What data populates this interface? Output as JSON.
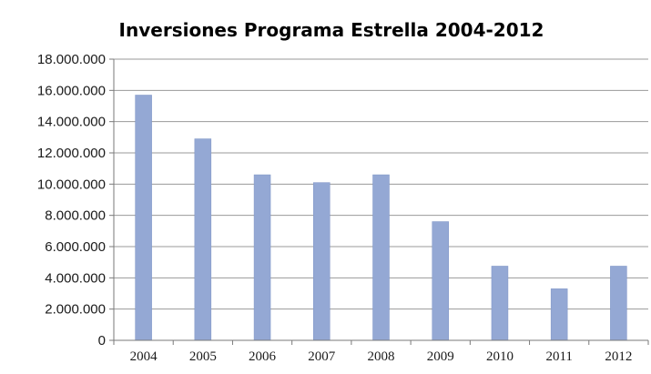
{
  "chart_data": {
    "type": "bar",
    "title": "Inversiones Programa Estrella 2004-2012",
    "categories": [
      "2004",
      "2005",
      "2006",
      "2007",
      "2008",
      "2009",
      "2010",
      "2011",
      "2012"
    ],
    "values": [
      15700000,
      12900000,
      10600000,
      10100000,
      10600000,
      7600000,
      4750000,
      3300000,
      4750000
    ],
    "ylim": [
      0,
      18000000
    ],
    "yticks": [
      0,
      2000000,
      4000000,
      6000000,
      8000000,
      10000000,
      12000000,
      14000000,
      16000000,
      18000000
    ],
    "ytick_labels": [
      "0",
      "2.000.000",
      "4.000.000",
      "6.000.000",
      "8.000.000",
      "10.000.000",
      "12.000.000",
      "14.000.000",
      "16.000.000",
      "18.000.000"
    ],
    "xlabel": "",
    "ylabel": "",
    "grid": true,
    "legend": "none",
    "colors": {
      "bar": "#94a8d4",
      "bar_edge": "#7f95c6",
      "grid": "#9a9a9a",
      "axis": "#7a7a7a"
    }
  }
}
